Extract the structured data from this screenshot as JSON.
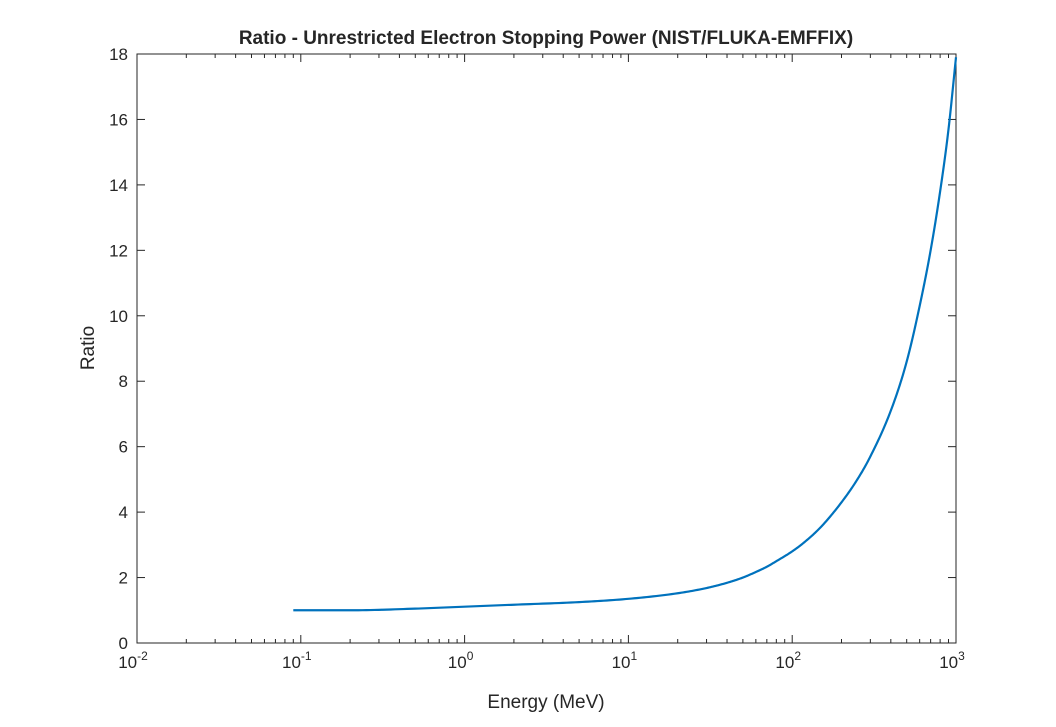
{
  "chart_data": {
    "type": "line",
    "title": "Ratio - Unrestricted Electron Stopping Power (NIST/FLUKA-EMFFIX)",
    "xlabel": "Energy (MeV)",
    "ylabel": "Ratio",
    "xscale": "log",
    "xlim": [
      0.01,
      1000
    ],
    "ylim": [
      0,
      18
    ],
    "grid": false,
    "box": true,
    "x_ticks": [
      {
        "base": "10",
        "exp": "-2",
        "value": 0.01
      },
      {
        "base": "10",
        "exp": "-1",
        "value": 0.1
      },
      {
        "base": "10",
        "exp": "0",
        "value": 1
      },
      {
        "base": "10",
        "exp": "1",
        "value": 10
      },
      {
        "base": "10",
        "exp": "2",
        "value": 100
      },
      {
        "base": "10",
        "exp": "3",
        "value": 1000
      }
    ],
    "y_ticks": [
      "0",
      "2",
      "4",
      "6",
      "8",
      "10",
      "12",
      "14",
      "16",
      "18"
    ],
    "series": [
      {
        "color": "#0072BD",
        "x": [
          0.09,
          0.2,
          0.5,
          1,
          2,
          5,
          10,
          20,
          30,
          40,
          50,
          60,
          70,
          80,
          100,
          120,
          150,
          200,
          250,
          300,
          400,
          500,
          600,
          700,
          800,
          900,
          1000
        ],
        "y": [
          1.0,
          1.0,
          1.05,
          1.11,
          1.17,
          1.25,
          1.35,
          1.52,
          1.68,
          1.84,
          2.0,
          2.17,
          2.33,
          2.5,
          2.8,
          3.1,
          3.55,
          4.3,
          5.0,
          5.7,
          7.1,
          8.6,
          10.3,
          12.0,
          13.8,
          15.7,
          17.9
        ]
      }
    ]
  }
}
